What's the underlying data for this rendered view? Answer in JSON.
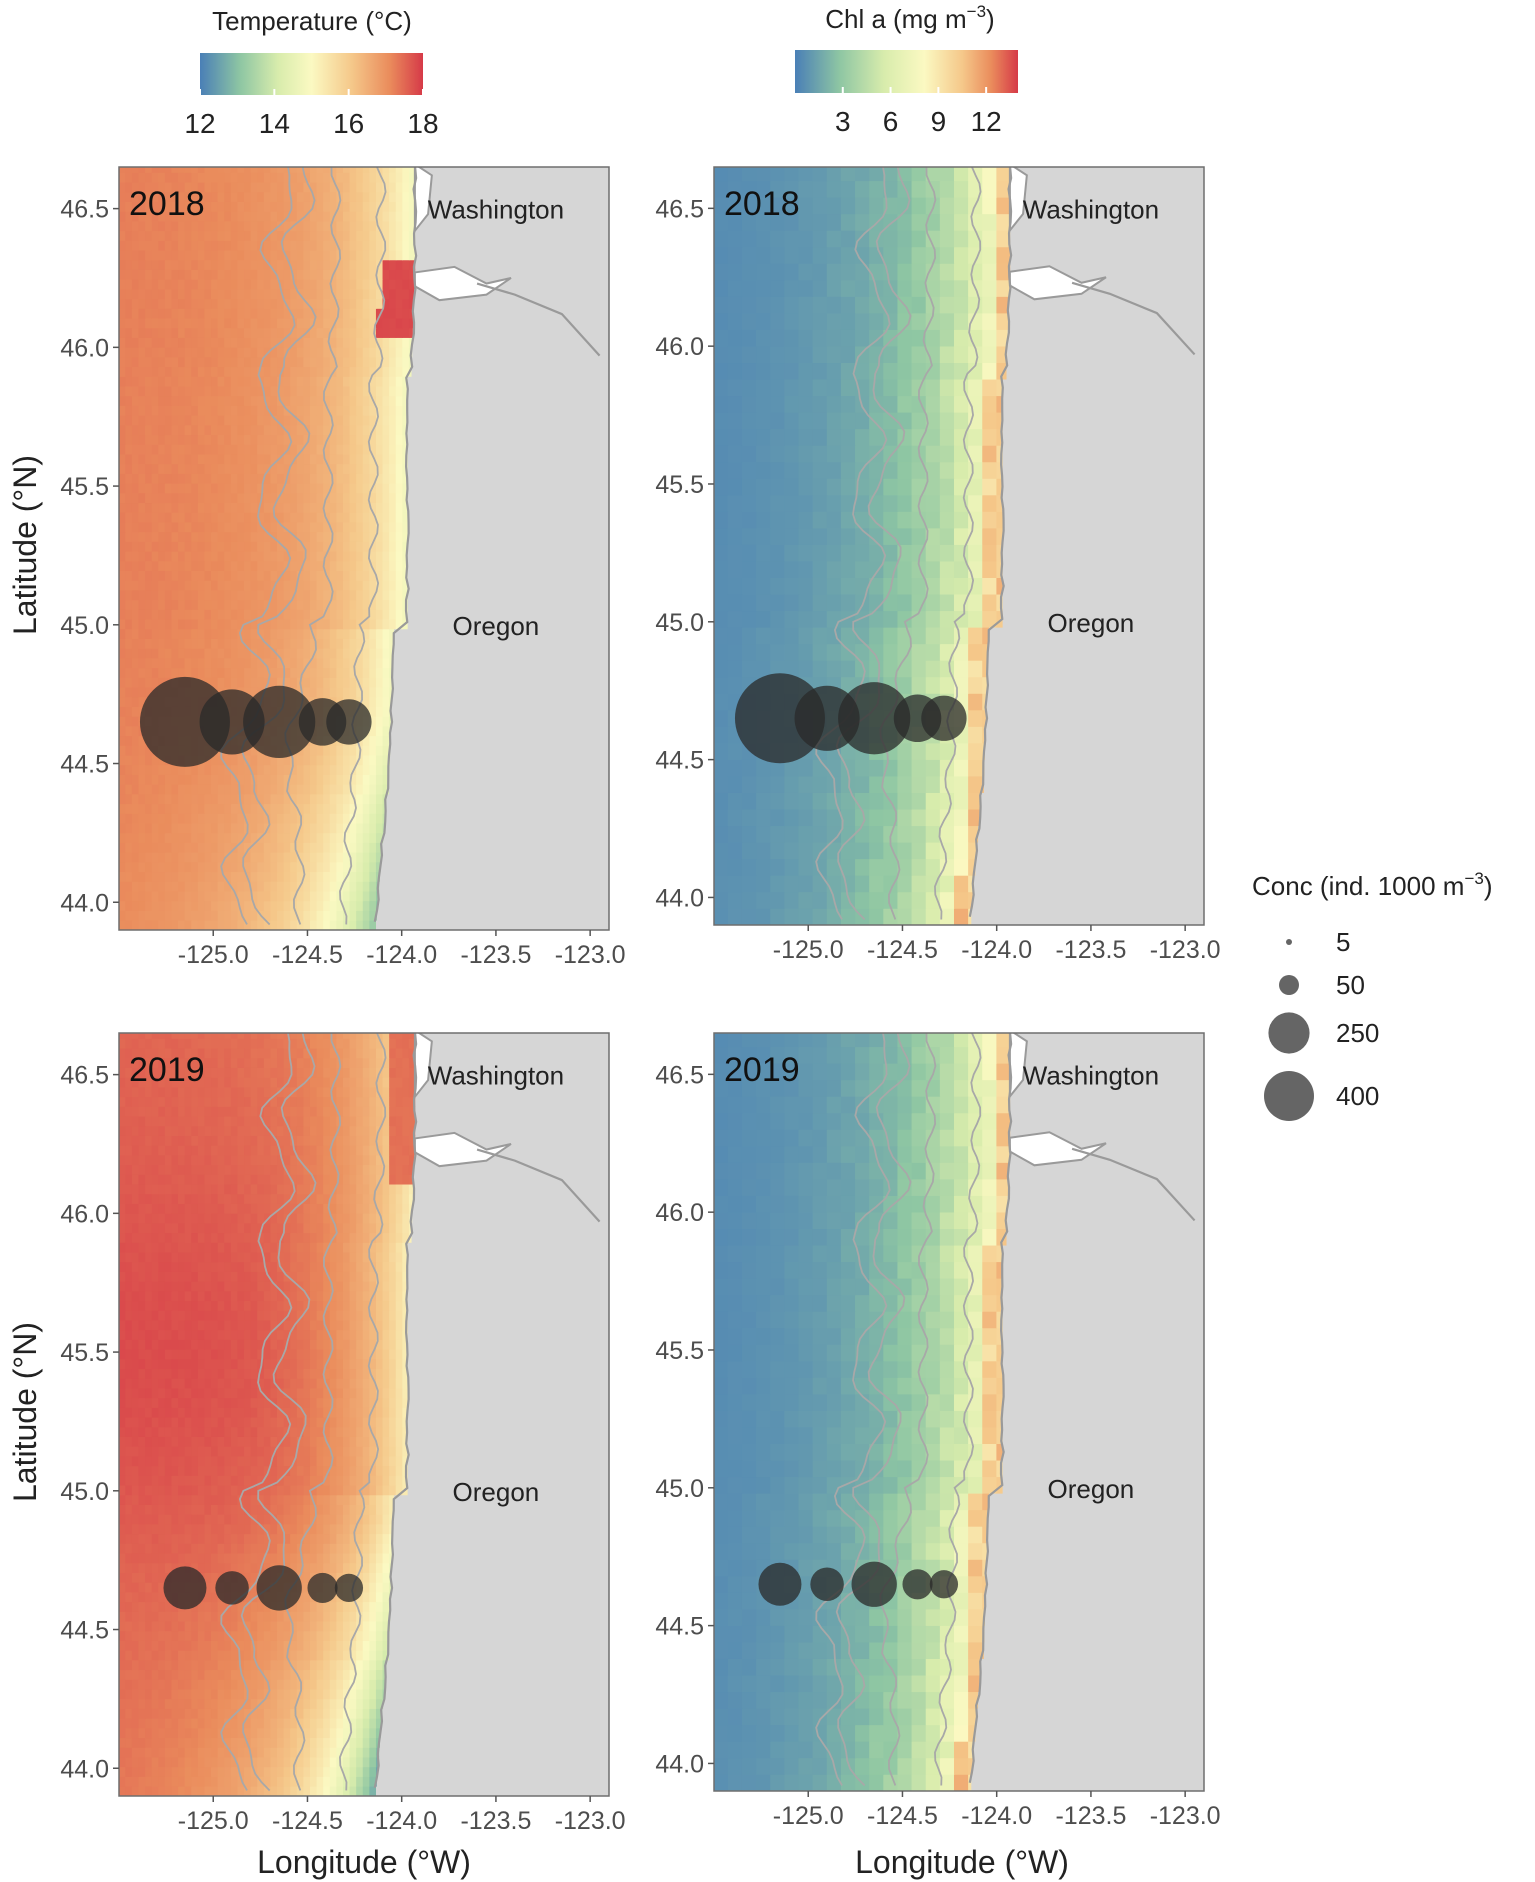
{
  "colors": {
    "land": "#d6d6d6",
    "coast_line": "#9a9a9a",
    "contour": "#a8a8a8",
    "panel_border": "#6e6e6e",
    "bubble": "#2a2a2a",
    "tick_text": "#4d4d4d"
  },
  "legends": {
    "temperature": {
      "title": "Temperature (°C)",
      "ticks": [
        "12",
        "14",
        "16",
        "18"
      ],
      "range": [
        12,
        18
      ]
    },
    "chl": {
      "title_main": "Chl a",
      "title_unit": "(mg m",
      "title_exp": "−3",
      "title_close": ")",
      "ticks": [
        "3",
        "6",
        "9",
        "12"
      ],
      "range": [
        0,
        14
      ]
    },
    "conc": {
      "title_main": "Conc (ind. 1000 m",
      "title_exp": "−3",
      "title_close": ")",
      "values": [
        5,
        50,
        250,
        400
      ],
      "labels": [
        "5",
        "50",
        "250",
        "400"
      ]
    }
  },
  "axes": {
    "x_label": "Longitude (°W)",
    "y_label": "Latitude (°N)",
    "x_range": [
      -125.5,
      -122.9
    ],
    "y_range": [
      43.9,
      46.65
    ],
    "x_ticks": [
      "-125.0",
      "-124.5",
      "-124.0",
      "-123.5",
      "-123.0"
    ],
    "x_tick_values": [
      -125.0,
      -124.5,
      -124.0,
      -123.5,
      -123.0
    ],
    "y_ticks": [
      "44.0",
      "44.5",
      "45.0",
      "45.5",
      "46.0",
      "46.5"
    ],
    "y_tick_values": [
      44.0,
      44.5,
      45.0,
      45.5,
      46.0,
      46.5
    ]
  },
  "labels": {
    "washington": "Washington",
    "oregon": "Oregon"
  },
  "panels": [
    {
      "year": "2018",
      "variable": "temperature",
      "row": 0,
      "col": 0
    },
    {
      "year": "2018",
      "variable": "chl",
      "row": 0,
      "col": 1
    },
    {
      "year": "2019",
      "variable": "temperature",
      "row": 1,
      "col": 0
    },
    {
      "year": "2019",
      "variable": "chl",
      "row": 1,
      "col": 1
    }
  ],
  "chart_data": {
    "type": "scatter",
    "x_axis": "Longitude (°W)",
    "y_axis": "Latitude (°N)",
    "series": [
      {
        "name": "2018",
        "stations": [
          {
            "lon": -125.15,
            "lat": 44.65,
            "conc": 400
          },
          {
            "lon": -124.9,
            "lat": 44.65,
            "conc": 200
          },
          {
            "lon": -124.65,
            "lat": 44.65,
            "conc": 250
          },
          {
            "lon": -124.42,
            "lat": 44.65,
            "conc": 100
          },
          {
            "lon": -124.28,
            "lat": 44.65,
            "conc": 90
          }
        ]
      },
      {
        "name": "2019",
        "stations": [
          {
            "lon": -125.15,
            "lat": 44.65,
            "conc": 80
          },
          {
            "lon": -124.9,
            "lat": 44.65,
            "conc": 45
          },
          {
            "lon": -124.65,
            "lat": 44.65,
            "conc": 90
          },
          {
            "lon": -124.42,
            "lat": 44.65,
            "conc": 35
          },
          {
            "lon": -124.28,
            "lat": 44.65,
            "conc": 30
          }
        ]
      }
    ]
  }
}
